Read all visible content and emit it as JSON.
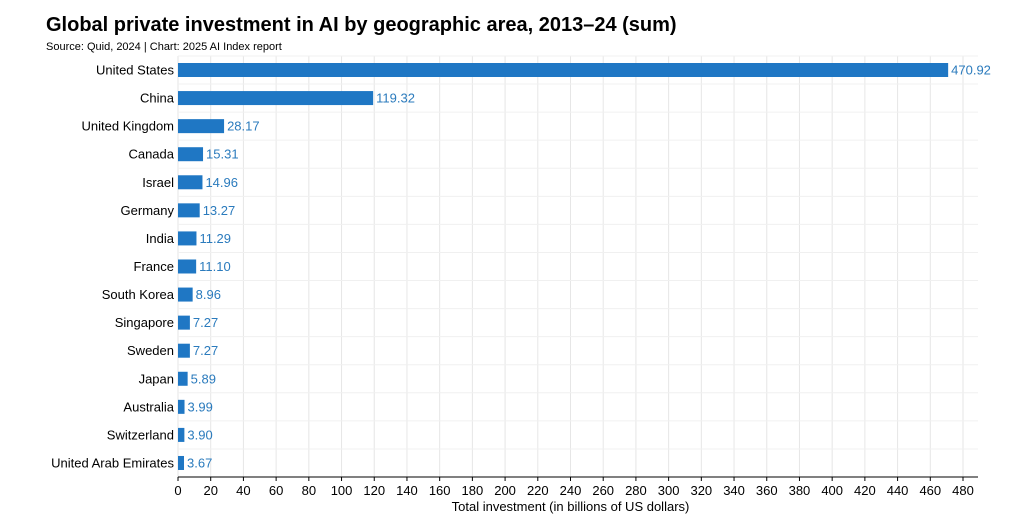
{
  "header": {
    "title": "Global private investment in AI by geographic area, 2013–24 (sum)",
    "subtitle": "Source: Quid, 2024 | Chart: 2025 AI Index report"
  },
  "colors": {
    "bar": "#1f77c4",
    "value_label": "#2b7bbd",
    "grid": "#e6e6e6",
    "axis": "#000000"
  },
  "chart_data": {
    "type": "bar",
    "orientation": "horizontal",
    "title": "Global private investment in AI by geographic area, 2013–24 (sum)",
    "subtitle": "Source: Quid, 2024 | Chart: 2025 AI Index report",
    "xlabel": "Total investment (in billions of US dollars)",
    "ylabel": "",
    "xlim": [
      0,
      480
    ],
    "xticks": [
      0,
      20,
      40,
      60,
      80,
      100,
      120,
      140,
      160,
      180,
      200,
      220,
      240,
      260,
      280,
      300,
      320,
      340,
      360,
      380,
      400,
      420,
      440,
      460,
      480
    ],
    "grid": true,
    "categories": [
      "United States",
      "China",
      "United Kingdom",
      "Canada",
      "Israel",
      "Germany",
      "India",
      "France",
      "South Korea",
      "Singapore",
      "Sweden",
      "Japan",
      "Australia",
      "Switzerland",
      "United Arab Emirates"
    ],
    "values": [
      470.92,
      119.32,
      28.17,
      15.31,
      14.96,
      13.27,
      11.29,
      11.1,
      8.96,
      7.27,
      7.27,
      5.89,
      3.99,
      3.9,
      3.67
    ],
    "value_labels": [
      "470.92",
      "119.32",
      "28.17",
      "15.31",
      "14.96",
      "13.27",
      "11.29",
      "11.10",
      "8.96",
      "7.27",
      "7.27",
      "5.89",
      "3.99",
      "3.90",
      "3.67"
    ]
  }
}
